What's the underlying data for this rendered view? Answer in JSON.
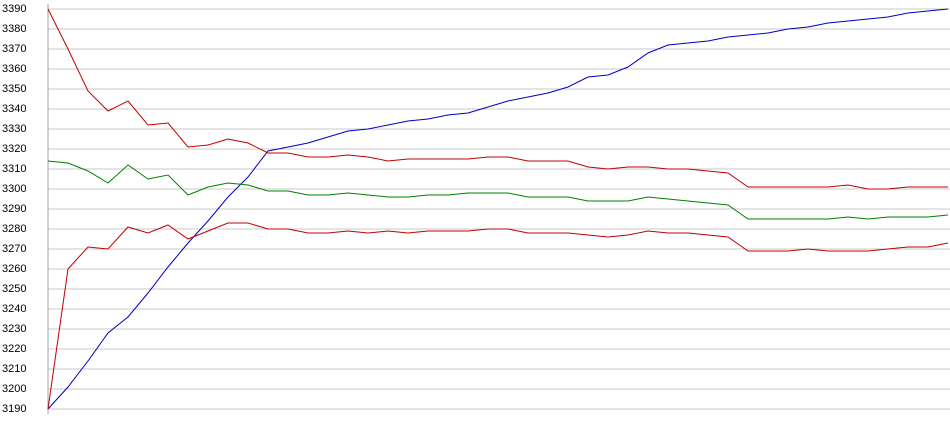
{
  "chart_data": {
    "type": "line",
    "ylim": [
      3190,
      3390
    ],
    "yticks": [
      3190,
      3200,
      3210,
      3220,
      3230,
      3240,
      3250,
      3260,
      3270,
      3280,
      3290,
      3300,
      3310,
      3320,
      3330,
      3340,
      3350,
      3360,
      3370,
      3380,
      3390
    ],
    "grid": true,
    "series": [
      {
        "color": "#0000c0",
        "values": [
          3190,
          3201,
          3214,
          3228,
          3236,
          3248,
          3261,
          3273,
          3284,
          3296,
          3306,
          3319,
          3321,
          3323,
          3326,
          3329,
          3330,
          3332,
          3334,
          3335,
          3337,
          3338,
          3341,
          3344,
          3346,
          3348,
          3351,
          3356,
          3357,
          3361,
          3368,
          3372,
          3373,
          3374,
          3376,
          3377,
          3378,
          3380,
          3381,
          3383,
          3384,
          3385,
          3386,
          3388,
          3389,
          3390
        ]
      },
      {
        "color": "#c00000",
        "values": [
          3390,
          3370,
          3349,
          3339,
          3344,
          3332,
          3333,
          3321,
          3322,
          3325,
          3323,
          3318,
          3318,
          3316,
          3316,
          3317,
          3316,
          3314,
          3315,
          3315,
          3315,
          3315,
          3316,
          3316,
          3314,
          3314,
          3314,
          3311,
          3310,
          3311,
          3311,
          3310,
          3310,
          3309,
          3308,
          3301,
          3301,
          3301,
          3301,
          3301,
          3302,
          3300,
          3300,
          3301,
          3301,
          3301
        ]
      },
      {
        "color": "#008000",
        "values": [
          3314,
          3313,
          3309,
          3303,
          3312,
          3305,
          3307,
          3297,
          3301,
          3303,
          3302,
          3299,
          3299,
          3297,
          3297,
          3298,
          3297,
          3296,
          3296,
          3297,
          3297,
          3298,
          3298,
          3298,
          3296,
          3296,
          3296,
          3294,
          3294,
          3294,
          3296,
          3295,
          3294,
          3293,
          3292,
          3285,
          3285,
          3285,
          3285,
          3285,
          3286,
          3285,
          3286,
          3286,
          3286,
          3287
        ]
      },
      {
        "color": "#c00000",
        "values": [
          3190,
          3260,
          3271,
          3270,
          3281,
          3278,
          3282,
          3275,
          3279,
          3283,
          3283,
          3280,
          3280,
          3278,
          3278,
          3279,
          3278,
          3279,
          3278,
          3279,
          3279,
          3279,
          3280,
          3280,
          3278,
          3278,
          3278,
          3277,
          3276,
          3277,
          3279,
          3278,
          3278,
          3277,
          3276,
          3269,
          3269,
          3269,
          3270,
          3269,
          3269,
          3269,
          3270,
          3271,
          3271,
          3273
        ]
      }
    ]
  }
}
